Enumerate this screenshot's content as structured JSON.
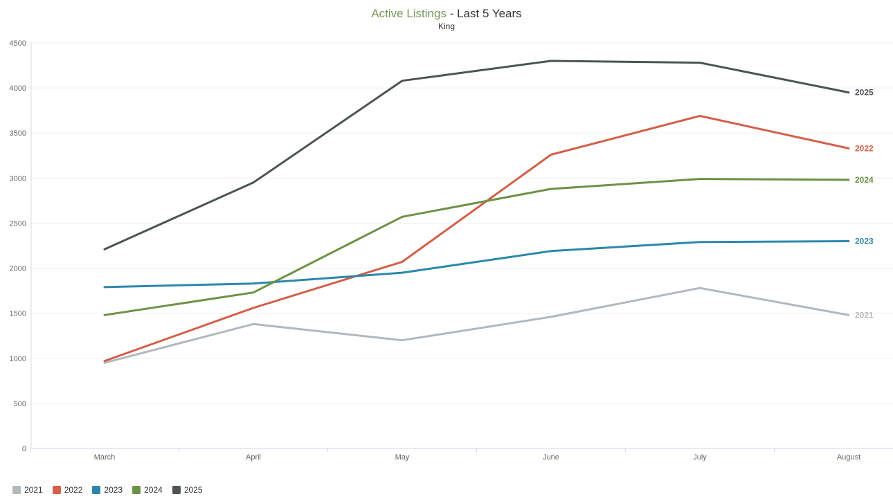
{
  "title": {
    "main": "Active Listings",
    "suffix": " - Last 5 Years",
    "subtitle": "King"
  },
  "chart_data": {
    "type": "line",
    "title": "Active Listings - Last 5 Years",
    "subtitle": "King",
    "xlabel": "",
    "ylabel": "",
    "categories": [
      "March",
      "April",
      "May",
      "June",
      "July",
      "August"
    ],
    "series": [
      {
        "name": "2021",
        "color": "#b2b8bf",
        "values": [
          950,
          1380,
          1200,
          1460,
          1780,
          1480
        ]
      },
      {
        "name": "2022",
        "color": "#d3604a",
        "values": [
          970,
          1560,
          2070,
          3260,
          3690,
          3330
        ]
      },
      {
        "name": "2023",
        "color": "#2b87aa",
        "values": [
          1790,
          1830,
          1950,
          2190,
          2290,
          2300
        ]
      },
      {
        "name": "2024",
        "color": "#6d9147",
        "values": [
          1480,
          1730,
          2570,
          2880,
          2990,
          2980
        ]
      },
      {
        "name": "2025",
        "color": "#4c5456",
        "values": [
          2210,
          2950,
          4080,
          4300,
          4280,
          3950
        ]
      }
    ],
    "ylim": [
      0,
      4500
    ],
    "ytick_step": 500,
    "yticks": [
      0,
      500,
      1000,
      1500,
      2000,
      2500,
      3000,
      3500,
      4000,
      4500
    ],
    "grid": true,
    "legend_position": "bottom-left",
    "series_end_labels": true
  },
  "colors": {
    "title_accent": "#77985a",
    "title_text": "#333333",
    "axis_label": "#666666",
    "grid": "#f0f0f0",
    "axis_line": "#ccd6eb",
    "y_axis_line": "#d8d8d8",
    "background": "#ffffff"
  }
}
